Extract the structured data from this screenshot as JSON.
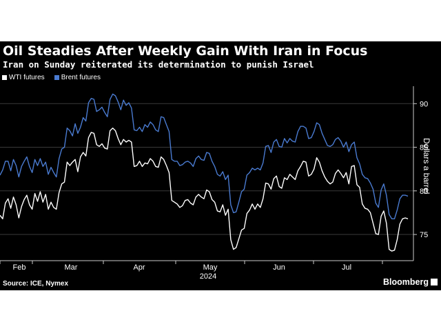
{
  "title": "Oil Steadies After Weekly Gain With Iran in Focus",
  "subtitle": "Iran on Sunday reiterated its determination to punish Israel",
  "source": "Source: ICE, Nymex",
  "brand": "Bloomberg",
  "colors": {
    "background": "#000000",
    "wti": "#ffffff",
    "brent": "#4a7bd1",
    "grid": "#333333",
    "axis": "#cccccc"
  },
  "chart_data": {
    "type": "line",
    "ylabel": "Dollars a barrel",
    "xlabel": "2024",
    "ylim": [
      72,
      92
    ],
    "yticks": [
      75,
      80,
      85,
      90
    ],
    "grid": true,
    "legend_position": "top-left",
    "months": [
      "Feb",
      "Mar",
      "Apr",
      "May",
      "Jun",
      "Jul"
    ],
    "year_label": "2024",
    "series": [
      {
        "name": "WTI futures",
        "color": "#ffffff",
        "values": [
          77.2,
          76.8,
          78.6,
          79.1,
          78.0,
          79.3,
          78.4,
          76.9,
          78.2,
          79.0,
          79.5,
          78.4,
          77.9,
          79.7,
          78.8,
          79.9,
          78.7,
          79.6,
          77.9,
          78.7,
          78.1,
          77.9,
          79.8,
          80.8,
          81.0,
          83.3,
          82.9,
          83.3,
          83.6,
          82.2,
          83.9,
          84.4,
          84.0,
          86.1,
          86.7,
          86.6,
          85.3,
          85.1,
          85.4,
          84.9,
          84.8,
          86.9,
          87.2,
          86.9,
          86.0,
          85.3,
          85.9,
          85.6,
          85.8,
          85.6,
          82.8,
          82.9,
          83.4,
          82.8,
          83.2,
          83.1,
          83.7,
          83.4,
          82.8,
          82.7,
          83.9,
          83.6,
          82.9,
          82.1,
          78.9,
          78.7,
          78.5,
          78.1,
          78.3,
          78.9,
          79.0,
          78.6,
          78.4,
          79.3,
          79.6,
          79.3,
          79.1,
          80.1,
          79.9,
          79.0,
          78.7,
          77.7,
          77.6,
          78.4,
          77.2,
          77.9,
          74.4,
          73.3,
          73.5,
          74.5,
          75.5,
          75.7,
          77.4,
          77.8,
          78.5,
          77.9,
          78.5,
          78.1,
          79.1,
          80.9,
          80.8,
          80.2,
          81.4,
          81.7,
          80.5,
          80.3,
          81.5,
          81.3,
          81.9,
          81.6,
          81.3,
          82.3,
          82.8,
          83.4,
          83.3,
          81.7,
          81.9,
          82.5,
          83.8,
          83.3,
          82.3,
          81.6,
          81.1,
          80.8,
          81.0,
          82.0,
          82.4,
          82.0,
          81.5,
          82.1,
          80.8,
          82.8,
          82.9,
          80.7,
          80.4,
          78.5,
          78.0,
          77.9,
          77.5,
          76.3,
          75.1,
          75.0,
          77.1,
          77.7,
          76.3,
          73.3,
          73.1,
          73.2,
          74.4,
          76.2,
          76.8,
          76.9,
          76.8
        ]
      },
      {
        "name": "Brent futures",
        "color": "#4a7bd1",
        "values": [
          81.8,
          82.4,
          83.4,
          83.4,
          82.3,
          83.6,
          82.9,
          81.6,
          82.8,
          83.4,
          83.9,
          82.8,
          82.1,
          83.6,
          82.9,
          83.7,
          82.8,
          83.3,
          81.9,
          82.7,
          82.1,
          81.6,
          83.7,
          84.8,
          85.0,
          87.2,
          86.9,
          86.3,
          87.7,
          86.6,
          87.3,
          88.4,
          88.0,
          90.1,
          90.6,
          90.5,
          89.1,
          89.3,
          89.6,
          89.0,
          88.5,
          90.5,
          91.1,
          90.9,
          90.2,
          89.3,
          90.4,
          89.8,
          90.1,
          89.5,
          87.0,
          86.9,
          87.3,
          86.8,
          87.6,
          87.3,
          87.9,
          87.6,
          87.0,
          86.8,
          88.5,
          88.4,
          87.6,
          86.8,
          83.6,
          83.4,
          83.4,
          82.9,
          83.0,
          83.3,
          83.4,
          83.2,
          82.8,
          83.7,
          84.0,
          83.6,
          83.5,
          84.4,
          84.3,
          83.4,
          82.8,
          81.9,
          81.7,
          82.2,
          81.3,
          81.8,
          78.4,
          77.5,
          77.6,
          78.7,
          79.9,
          80.2,
          81.8,
          82.1,
          82.6,
          82.4,
          82.6,
          82.4,
          83.2,
          85.1,
          85.2,
          84.4,
          85.6,
          85.9,
          85.1,
          85.0,
          86.0,
          85.5,
          86.0,
          85.7,
          85.6,
          86.8,
          87.4,
          87.4,
          87.2,
          86.0,
          86.1,
          86.8,
          87.8,
          87.6,
          86.6,
          85.9,
          85.2,
          85.1,
          85.3,
          85.9,
          86.1,
          85.7,
          85.0,
          85.6,
          84.5,
          85.3,
          85.6,
          83.8,
          83.1,
          81.9,
          81.5,
          81.4,
          80.9,
          80.2,
          78.6,
          78.1,
          80.1,
          80.8,
          79.5,
          77.3,
          76.8,
          76.8,
          77.8,
          79.1,
          79.5,
          79.5,
          79.4
        ]
      }
    ]
  }
}
